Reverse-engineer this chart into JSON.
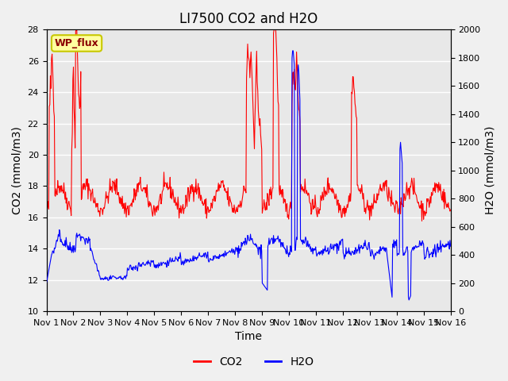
{
  "title": "LI7500 CO2 and H2O",
  "xlabel": "Time",
  "ylabel_left": "CO2 (mmol/m3)",
  "ylabel_right": "H2O (mmol/m3)",
  "co2_ylim": [
    10,
    28
  ],
  "h2o_ylim": [
    0,
    2000
  ],
  "co2_yticks": [
    10,
    12,
    14,
    16,
    18,
    20,
    22,
    24,
    26,
    28
  ],
  "h2o_yticks": [
    0,
    200,
    400,
    600,
    800,
    1000,
    1200,
    1400,
    1600,
    1800,
    2000
  ],
  "x_tick_labels": [
    "Nov 1",
    "Nov 2",
    "Nov 3",
    "Nov 4",
    "Nov 5",
    "Nov 6",
    "Nov 7",
    "Nov 8",
    "Nov 9",
    "Nov 10",
    "Nov 11",
    "Nov 12",
    "Nov 13",
    "Nov 14",
    "Nov 15",
    "Nov 16"
  ],
  "co2_color": "red",
  "h2o_color": "blue",
  "bg_color": "#f0f0f0",
  "plot_bg": "#e8e8e8",
  "grid_color": "white",
  "annotation_text": "WP_flux",
  "annotation_bg": "#ffffa0",
  "annotation_border": "#c8c800",
  "title_fontsize": 12,
  "label_fontsize": 10,
  "tick_fontsize": 8,
  "legend_fontsize": 10
}
